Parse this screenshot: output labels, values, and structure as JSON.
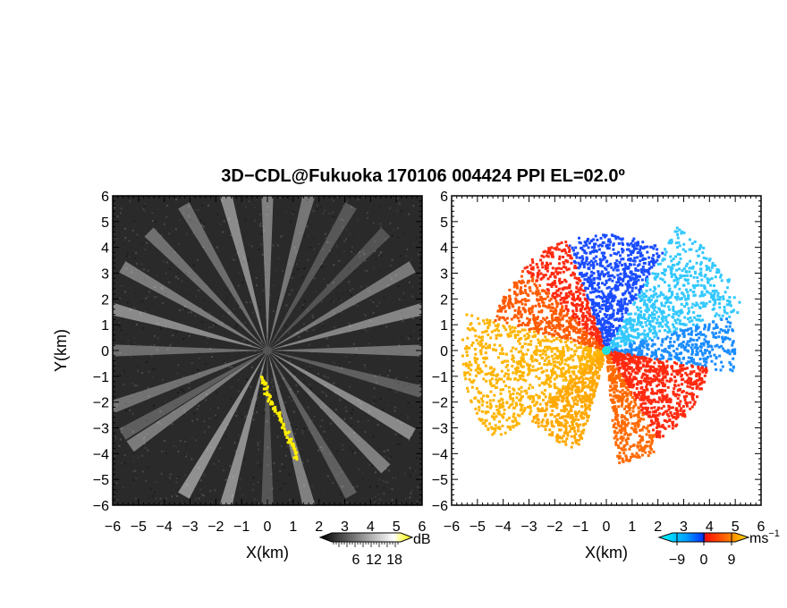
{
  "title": "3D−CDL@Fukuoka 170106 004424 PPI EL=02.0º",
  "chart_data": [
    {
      "type": "heatmap",
      "panel": "left",
      "xlabel": "X(km)",
      "ylabel": "Y(km)",
      "xlim": [
        -6,
        6
      ],
      "ylim": [
        -6,
        6
      ],
      "xticks": [
        "−6",
        "−5",
        "−4",
        "−3",
        "−2",
        "−1",
        "0",
        "1",
        "2",
        "3",
        "4",
        "5",
        "6"
      ],
      "yticks": [
        "6",
        "5",
        "4",
        "3",
        "2",
        "1",
        "0",
        "−1",
        "−2",
        "−3",
        "−4",
        "−5",
        "−6"
      ],
      "colorbar": {
        "unit": "dB",
        "ticks": [
          "6",
          "12",
          "18"
        ],
        "colors": [
          "#000000",
          "#ffffff",
          "#ffff00"
        ]
      },
      "background": "#2a2a2a",
      "beam_azimuths_deg": [
        -150,
        -125,
        -110,
        -90,
        -75,
        -60,
        -45,
        -30,
        -15,
        0,
        15,
        30,
        45,
        60,
        75,
        90,
        105,
        120,
        135,
        150,
        165,
        180,
        195,
        210,
        240
      ],
      "high_return_points": [
        [
          -0.3,
          -1.0
        ],
        [
          -0.1,
          -1.5
        ],
        [
          0.1,
          -2.0
        ],
        [
          0.4,
          -2.5
        ],
        [
          0.7,
          -3.1
        ],
        [
          0.9,
          -3.6
        ],
        [
          1.1,
          -4.2
        ]
      ]
    },
    {
      "type": "heatmap",
      "panel": "right",
      "xlabel": "X(km)",
      "xlim": [
        -6,
        6
      ],
      "ylim": [
        -6,
        6
      ],
      "xticks": [
        "−6",
        "−5",
        "−4",
        "−3",
        "−2",
        "−1",
        "0",
        "1",
        "2",
        "3",
        "4",
        "5",
        "6"
      ],
      "yticks": [
        "6",
        "5",
        "4",
        "3",
        "2",
        "1",
        "0",
        "−1",
        "−2",
        "−3",
        "−4",
        "−5",
        "−6"
      ],
      "colorbar": {
        "unit": "ms",
        "unit_sup": "−1",
        "ticks": [
          "−9",
          "0",
          "9"
        ],
        "colors": [
          "#00ffff",
          "#0050ff",
          "#ff2a00",
          "#ffcc00"
        ]
      },
      "sectors": [
        {
          "az_from": -20,
          "az_to": 30,
          "reach_km": 4.5,
          "color": "#1a4cff"
        },
        {
          "az_from": 30,
          "az_to": 75,
          "reach_km": 5.5,
          "color": "#33c8ff"
        },
        {
          "az_from": 75,
          "az_to": 100,
          "reach_km": 5.0,
          "color": "#1a8cff"
        },
        {
          "az_from": 100,
          "az_to": 150,
          "reach_km": 4.0,
          "color": "#ff2a10"
        },
        {
          "az_from": 150,
          "az_to": 175,
          "reach_km": 4.4,
          "color": "#ff6a00"
        },
        {
          "az_from": 195,
          "az_to": 230,
          "reach_km": 4.0,
          "color": "#ffa800"
        },
        {
          "az_from": 230,
          "az_to": 285,
          "reach_km": 5.6,
          "color": "#ffb400"
        },
        {
          "az_from": 285,
          "az_to": 315,
          "reach_km": 4.5,
          "color": "#ff5a00"
        },
        {
          "az_from": 315,
          "az_to": 340,
          "reach_km": 4.6,
          "color": "#ff2a10"
        }
      ]
    }
  ]
}
